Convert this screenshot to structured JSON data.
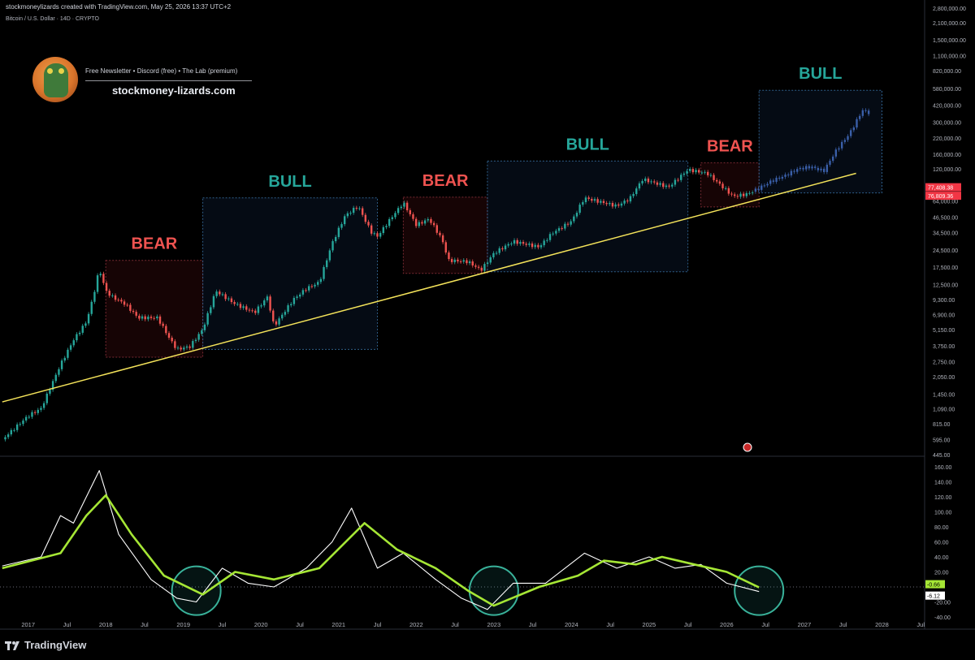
{
  "header": {
    "attribution": "stockmoneylizards created with TradingView.com, May 25, 2026 13:37 UTC+2",
    "symbol": "Bitcoin / U.S. Dollar · 14D · CRYPTO"
  },
  "brand": {
    "newsletter_line": "Free Newsletter • Discord (free) • The Lab (premium)",
    "site": "stockmoney-lizards.com"
  },
  "footer": {
    "logo_text": "TradingView"
  },
  "colors": {
    "bull": "#26a69a",
    "bear": "#ef5350",
    "trendline": "#f4e35a",
    "signal": "#a5e635"
  },
  "chart_data": [
    {
      "type": "candlestick",
      "title": "Bitcoin / U.S. Dollar · 14D · CRYPTO",
      "scale": "log",
      "ylim": [
        445,
        2800000
      ],
      "y_ticks": [
        "2,800,000.00",
        "2,100,000.00",
        "1,500,000.00",
        "1,100,000.00",
        "820,000.00",
        "580,000.00",
        "420,000.00",
        "300,000.00",
        "220,000.00",
        "160,000.00",
        "120,000.00",
        "64,000.00",
        "46,500.00",
        "34,500.00",
        "24,500.00",
        "17,500.00",
        "12,500.00",
        "9,300.00",
        "6,900.00",
        "5,150.00",
        "3,750.00",
        "2,750.00",
        "2,050.00",
        "1,450.00",
        "1,090.00",
        "815.00",
        "595.00",
        "445.00"
      ],
      "x_ticks": [
        "2017",
        "Jul",
        "2018",
        "Jul",
        "2019",
        "Jul",
        "2020",
        "Jul",
        "2021",
        "Jul",
        "2022",
        "Jul",
        "2023",
        "Jul",
        "2024",
        "Jul",
        "2025",
        "Jul",
        "2026",
        "Jul",
        "2027",
        "Jul",
        "2028",
        "Jul"
      ],
      "price_labels": [
        "77,408.38",
        "76,809.36"
      ],
      "regions": [
        {
          "label": "BEAR",
          "start": "2018-01",
          "end": "2019-04",
          "low": 3000,
          "high": 20000
        },
        {
          "label": "BULL",
          "start": "2019-04",
          "end": "2021-07",
          "low": 3500,
          "high": 68000
        },
        {
          "label": "BEAR",
          "start": "2021-11",
          "end": "2022-12",
          "low": 15500,
          "high": 69000
        },
        {
          "label": "BULL",
          "start": "2022-12",
          "end": "2025-07",
          "low": 16000,
          "high": 140000
        },
        {
          "label": "BEAR",
          "start": "2025-09",
          "end": "2026-06",
          "low": 57000,
          "high": 135000
        },
        {
          "label": "BULL",
          "start": "2026-06",
          "end": "2028-01",
          "low": 75000,
          "high": 560000
        }
      ],
      "trendline": [
        {
          "x": "2016-09",
          "y": 1250
        },
        {
          "x": "2027-09",
          "y": 110000
        }
      ],
      "price_path": [
        {
          "x": "2016-09",
          "y": 600
        },
        {
          "x": "2017-01",
          "y": 950
        },
        {
          "x": "2017-03",
          "y": 1100
        },
        {
          "x": "2017-06",
          "y": 2600
        },
        {
          "x": "2017-08",
          "y": 4200
        },
        {
          "x": "2017-10",
          "y": 6000
        },
        {
          "x": "2017-11",
          "y": 9500
        },
        {
          "x": "2017-12",
          "y": 17000
        },
        {
          "x": "2018-01",
          "y": 11000
        },
        {
          "x": "2018-02",
          "y": 9800
        },
        {
          "x": "2018-04",
          "y": 8500
        },
        {
          "x": "2018-06",
          "y": 6500
        },
        {
          "x": "2018-09",
          "y": 6500
        },
        {
          "x": "2018-11",
          "y": 4200
        },
        {
          "x": "2018-12",
          "y": 3500
        },
        {
          "x": "2019-02",
          "y": 3700
        },
        {
          "x": "2019-04",
          "y": 5200
        },
        {
          "x": "2019-06",
          "y": 11000
        },
        {
          "x": "2019-09",
          "y": 8500
        },
        {
          "x": "2019-12",
          "y": 7200
        },
        {
          "x": "2020-02",
          "y": 9800
        },
        {
          "x": "2020-03",
          "y": 5500
        },
        {
          "x": "2020-06",
          "y": 9300
        },
        {
          "x": "2020-08",
          "y": 11500
        },
        {
          "x": "2020-10",
          "y": 13000
        },
        {
          "x": "2020-12",
          "y": 28000
        },
        {
          "x": "2021-02",
          "y": 48000
        },
        {
          "x": "2021-04",
          "y": 58000
        },
        {
          "x": "2021-06",
          "y": 35000
        },
        {
          "x": "2021-07",
          "y": 32000
        },
        {
          "x": "2021-09",
          "y": 45000
        },
        {
          "x": "2021-11",
          "y": 62000
        },
        {
          "x": "2022-01",
          "y": 40000
        },
        {
          "x": "2022-03",
          "y": 45000
        },
        {
          "x": "2022-05",
          "y": 30000
        },
        {
          "x": "2022-06",
          "y": 20000
        },
        {
          "x": "2022-09",
          "y": 19500
        },
        {
          "x": "2022-11",
          "y": 16500
        },
        {
          "x": "2023-01",
          "y": 23000
        },
        {
          "x": "2023-04",
          "y": 29000
        },
        {
          "x": "2023-08",
          "y": 26000
        },
        {
          "x": "2023-10",
          "y": 34000
        },
        {
          "x": "2024-01",
          "y": 43000
        },
        {
          "x": "2024-03",
          "y": 68000
        },
        {
          "x": "2024-08",
          "y": 58000
        },
        {
          "x": "2024-10",
          "y": 67000
        },
        {
          "x": "2024-12",
          "y": 98000
        },
        {
          "x": "2025-04",
          "y": 84000
        },
        {
          "x": "2025-07",
          "y": 118000
        },
        {
          "x": "2025-10",
          "y": 110000
        },
        {
          "x": "2025-12",
          "y": 88000
        },
        {
          "x": "2026-02",
          "y": 70000
        },
        {
          "x": "2026-04",
          "y": 73000
        },
        {
          "x": "2026-05",
          "y": 76800
        }
      ],
      "projection_path": [
        {
          "x": "2026-05",
          "y": 76800
        },
        {
          "x": "2026-08",
          "y": 95000
        },
        {
          "x": "2026-10",
          "y": 105000
        },
        {
          "x": "2026-12",
          "y": 120000
        },
        {
          "x": "2027-02",
          "y": 125000
        },
        {
          "x": "2027-04",
          "y": 115000
        },
        {
          "x": "2027-06",
          "y": 175000
        },
        {
          "x": "2027-08",
          "y": 240000
        },
        {
          "x": "2027-10",
          "y": 380000
        },
        {
          "x": "2027-11",
          "y": 360000
        }
      ]
    },
    {
      "type": "line",
      "ylim": [
        -40,
        160
      ],
      "y_ticks": [
        "160.00",
        "140.00",
        "120.00",
        "100.00",
        "80.00",
        "60.00",
        "40.00",
        "20.00",
        "-20.00",
        "-40.00"
      ],
      "value_labels": [
        "-0.66",
        "-6.12"
      ],
      "highlighted_lows": [
        "2019-03",
        "2023-01",
        "2026-06"
      ],
      "series": [
        {
          "color": "white",
          "points": [
            {
              "x": "2016-09",
              "y": 28
            },
            {
              "x": "2017-03",
              "y": 40
            },
            {
              "x": "2017-06",
              "y": 95
            },
            {
              "x": "2017-08",
              "y": 85
            },
            {
              "x": "2017-12",
              "y": 155
            },
            {
              "x": "2018-03",
              "y": 70
            },
            {
              "x": "2018-08",
              "y": 10
            },
            {
              "x": "2018-12",
              "y": -15
            },
            {
              "x": "2019-03",
              "y": -20
            },
            {
              "x": "2019-07",
              "y": 25
            },
            {
              "x": "2019-11",
              "y": 5
            },
            {
              "x": "2020-03",
              "y": 0
            },
            {
              "x": "2020-08",
              "y": 25
            },
            {
              "x": "2020-12",
              "y": 60
            },
            {
              "x": "2021-03",
              "y": 105
            },
            {
              "x": "2021-07",
              "y": 25
            },
            {
              "x": "2021-11",
              "y": 45
            },
            {
              "x": "2022-04",
              "y": 10
            },
            {
              "x": "2022-08",
              "y": -15
            },
            {
              "x": "2022-12",
              "y": -30
            },
            {
              "x": "2023-04",
              "y": 5
            },
            {
              "x": "2023-09",
              "y": 5
            },
            {
              "x": "2024-03",
              "y": 45
            },
            {
              "x": "2024-08",
              "y": 25
            },
            {
              "x": "2025-01",
              "y": 40
            },
            {
              "x": "2025-05",
              "y": 25
            },
            {
              "x": "2025-09",
              "y": 30
            },
            {
              "x": "2026-01",
              "y": 5
            },
            {
              "x": "2026-06",
              "y": -6.12
            }
          ]
        },
        {
          "color": "green",
          "points": [
            {
              "x": "2016-09",
              "y": 25
            },
            {
              "x": "2017-06",
              "y": 45
            },
            {
              "x": "2017-10",
              "y": 95
            },
            {
              "x": "2018-01",
              "y": 122
            },
            {
              "x": "2018-05",
              "y": 70
            },
            {
              "x": "2018-10",
              "y": 15
            },
            {
              "x": "2019-04",
              "y": -10
            },
            {
              "x": "2019-09",
              "y": 20
            },
            {
              "x": "2020-03",
              "y": 10
            },
            {
              "x": "2020-10",
              "y": 25
            },
            {
              "x": "2021-05",
              "y": 85
            },
            {
              "x": "2021-10",
              "y": 50
            },
            {
              "x": "2022-04",
              "y": 25
            },
            {
              "x": "2022-09",
              "y": -5
            },
            {
              "x": "2023-01",
              "y": -25
            },
            {
              "x": "2023-08",
              "y": 0
            },
            {
              "x": "2024-02",
              "y": 15
            },
            {
              "x": "2024-06",
              "y": 35
            },
            {
              "x": "2024-11",
              "y": 30
            },
            {
              "x": "2025-03",
              "y": 40
            },
            {
              "x": "2025-08",
              "y": 30
            },
            {
              "x": "2026-01",
              "y": 20
            },
            {
              "x": "2026-06",
              "y": -0.66
            }
          ]
        }
      ]
    }
  ]
}
